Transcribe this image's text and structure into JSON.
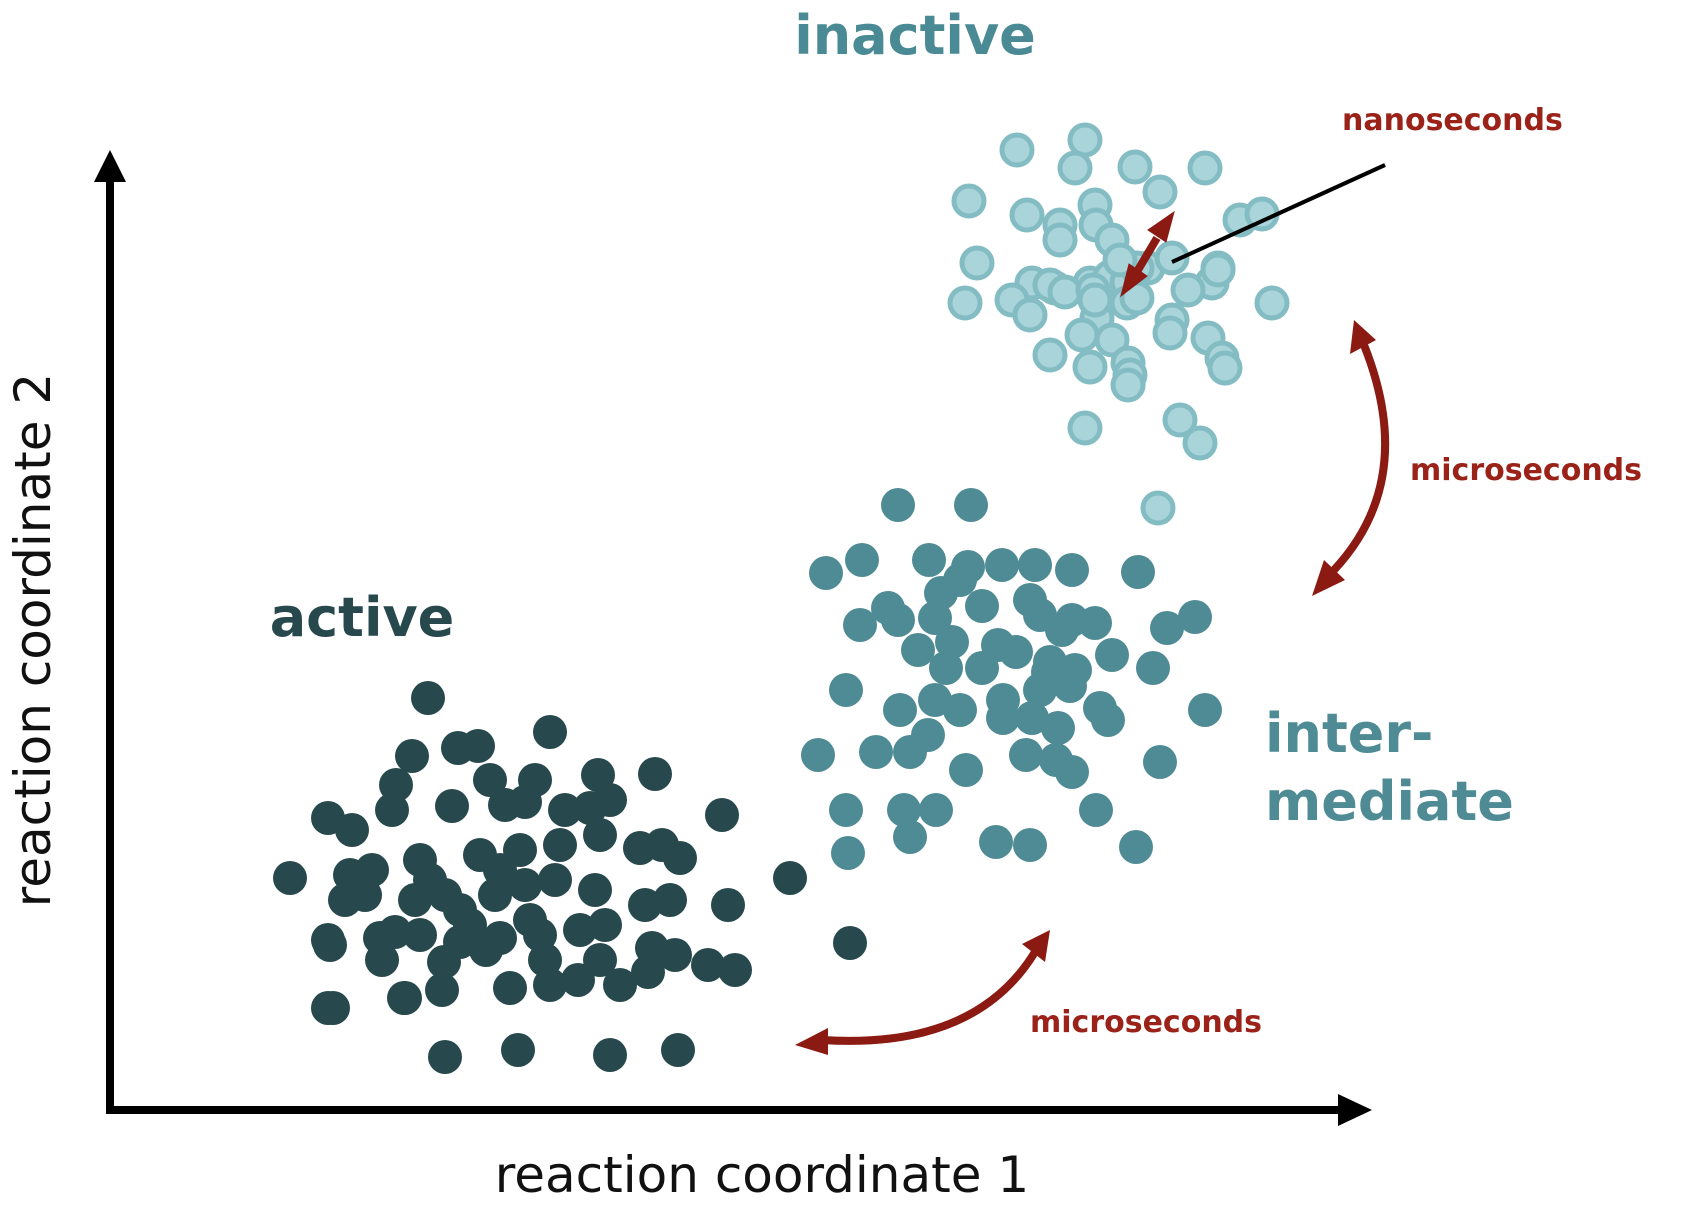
{
  "axes": {
    "x_title": "reaction coordinate 1",
    "y_title": "reaction coordinate 2"
  },
  "clusters": {
    "inactive": {
      "label": "inactive",
      "color": "#4a8a94"
    },
    "active": {
      "label": "active",
      "color": "#27484c"
    },
    "intermediate": {
      "label_line1": "inter-",
      "label_line2": "mediate",
      "color": "#4f8b94"
    }
  },
  "transitions": {
    "nanoseconds": "nanoseconds",
    "microseconds_upper": "microseconds",
    "microseconds_lower": "microseconds",
    "arrow_color": "#8b1a12",
    "label_color": "#9b2218"
  },
  "colors": {
    "inactive_fill": "#a9d5da",
    "inactive_stroke": "#84bcc3",
    "intermediate_fill": "#4f8b94",
    "active_fill": "#27484c",
    "axis": "#000000"
  }
}
